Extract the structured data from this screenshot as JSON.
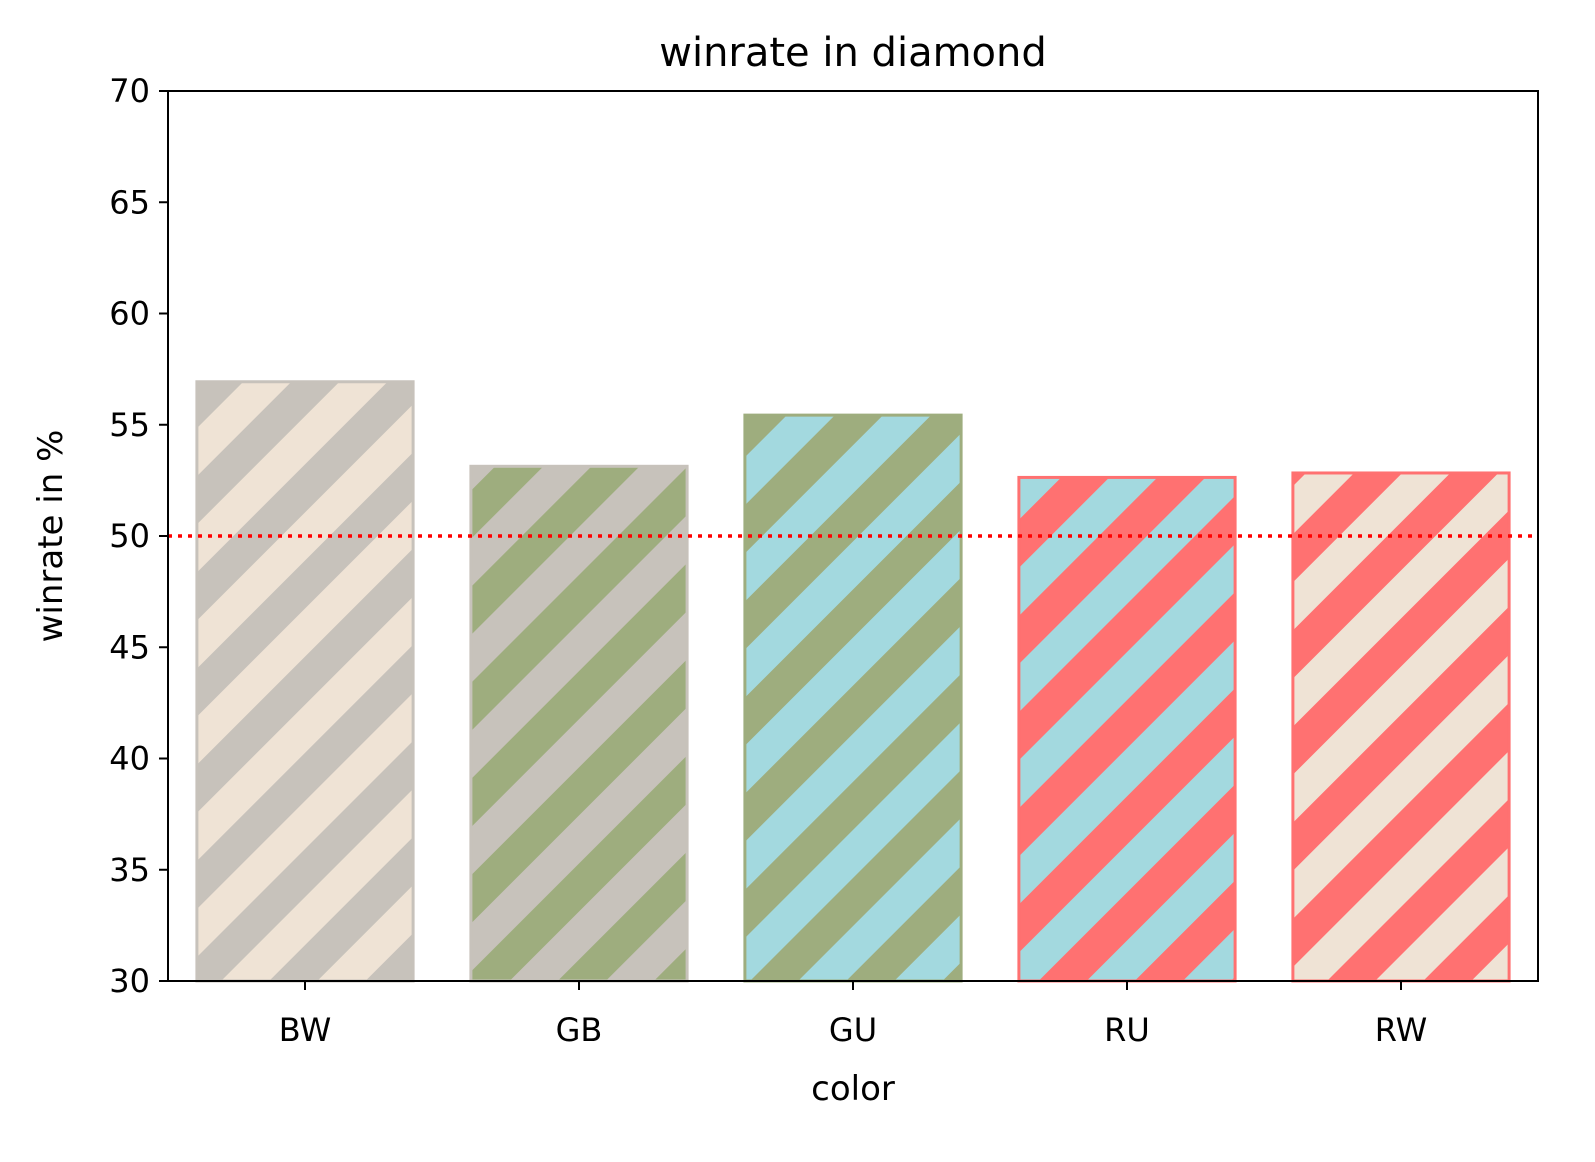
{
  "chart_data": {
    "type": "bar",
    "title": "winrate in diamond",
    "xlabel": "color",
    "ylabel": "winrate in %",
    "categories": [
      "BW",
      "GB",
      "GU",
      "RU",
      "RW"
    ],
    "values": [
      57.0,
      53.2,
      55.5,
      52.7,
      52.9
    ],
    "ylim": [
      30,
      70
    ],
    "yticks": [
      "30",
      "35",
      "40",
      "45",
      "50",
      "55",
      "60",
      "65",
      "70"
    ],
    "reference_line": {
      "value": 50,
      "style": "dotted",
      "color": "#ff0000"
    },
    "grid": false,
    "legend": "none",
    "bar_styles": [
      {
        "fill": "#efe3d5",
        "stripe": "#c7c2bb",
        "edge": "#c7c2bb"
      },
      {
        "fill": "#c7c2bb",
        "stripe": "#9ead7e",
        "edge": "#c7c2bb"
      },
      {
        "fill": "#a3d9df",
        "stripe": "#9ead7e",
        "edge": "#9ead7e"
      },
      {
        "fill": "#a3d9df",
        "stripe": "#ff7171",
        "edge": "#ff7171"
      },
      {
        "fill": "#efe3d5",
        "stripe": "#ff7171",
        "edge": "#ff7171"
      }
    ]
  }
}
